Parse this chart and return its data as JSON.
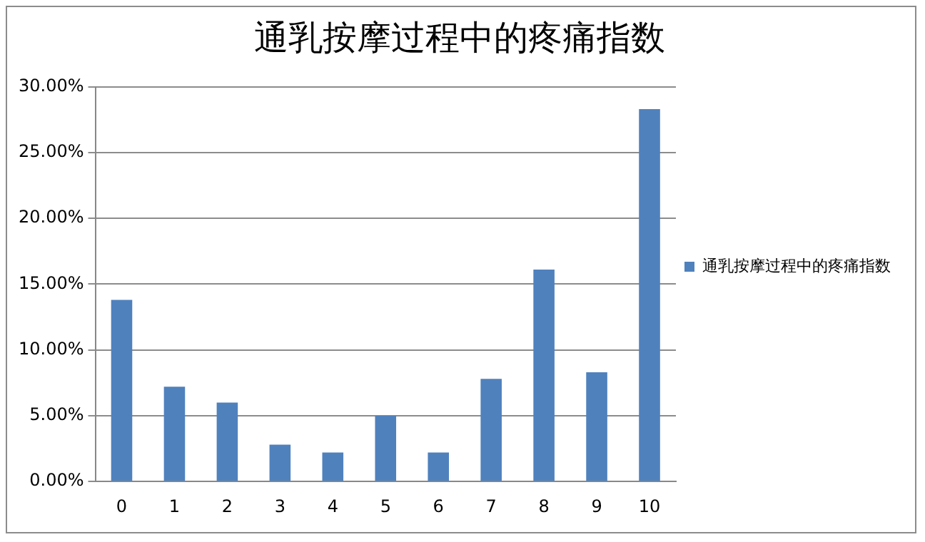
{
  "chart_data": {
    "type": "bar",
    "title": "通乳按摩过程中的疼痛指数",
    "categories": [
      "0",
      "1",
      "2",
      "3",
      "4",
      "5",
      "6",
      "7",
      "8",
      "9",
      "10"
    ],
    "series": [
      {
        "name": "通乳按摩过程中的疼痛指数",
        "color": "#4f81bd",
        "values": [
          13.8,
          7.2,
          6.0,
          2.8,
          2.2,
          5.0,
          2.2,
          7.8,
          16.1,
          8.3,
          28.3
        ]
      }
    ],
    "ylim": [
      0,
      30
    ],
    "yticks": [
      {
        "value": 0,
        "label": "0.00%"
      },
      {
        "value": 5,
        "label": "5.00%"
      },
      {
        "value": 10,
        "label": "10.00%"
      },
      {
        "value": 15,
        "label": "15.00%"
      },
      {
        "value": 20,
        "label": "20.00%"
      },
      {
        "value": 25,
        "label": "25.00%"
      },
      {
        "value": 30,
        "label": "30.00%"
      }
    ],
    "grid": "y",
    "legend": "right"
  }
}
